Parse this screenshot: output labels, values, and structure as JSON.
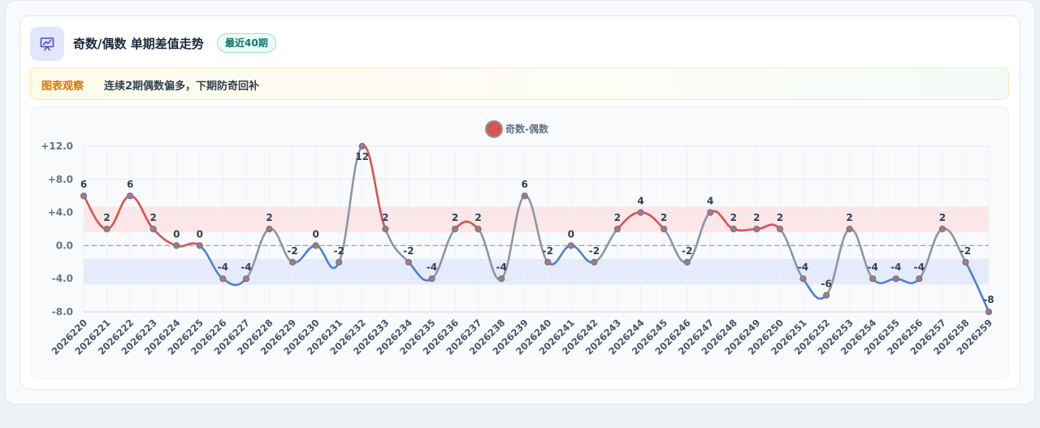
{
  "header": {
    "title": "奇数/偶数 单期差值走势",
    "badge": "最近40期"
  },
  "insight": {
    "label": "图表观察",
    "text": "连续2期偶数偏多，下期防奇回补"
  },
  "colors": {
    "positive": "#d9534f",
    "negative": "#4f7fd9",
    "neutral": "#8a97a6",
    "positive_band": "#fde3e6",
    "negative_band": "#e2e9fb",
    "accent": "#4f46e5"
  },
  "chart_data": {
    "type": "line",
    "title": "",
    "xlabel": "",
    "ylabel": "",
    "ylim": [
      -8,
      12
    ],
    "yticks": [
      {
        "value": 12,
        "label": "+12.0"
      },
      {
        "value": 8,
        "label": "+8.0"
      },
      {
        "value": 4,
        "label": "+4.0"
      },
      {
        "value": 0,
        "label": "0.0"
      },
      {
        "value": -4,
        "label": "-4.0"
      },
      {
        "value": -8,
        "label": "-8.0"
      }
    ],
    "legend": {
      "position": "top-center"
    },
    "grid": true,
    "zero_line": "dashed",
    "bands": [
      {
        "from": 1.6,
        "to": 4.7,
        "tone": "positive"
      },
      {
        "from": -4.7,
        "to": -1.6,
        "tone": "negative"
      }
    ],
    "x": [
      "2026220",
      "2026221",
      "2026222",
      "2026223",
      "2026224",
      "2026225",
      "2026226",
      "2026227",
      "2026228",
      "2026229",
      "2026230",
      "2026231",
      "2026232",
      "2026233",
      "2026234",
      "2026235",
      "2026236",
      "2026237",
      "2026238",
      "2026239",
      "2026240",
      "2026241",
      "2026242",
      "2026243",
      "2026244",
      "2026245",
      "2026246",
      "2026247",
      "2026248",
      "2026249",
      "2026250",
      "2026251",
      "2026252",
      "2026253",
      "2026254",
      "2026255",
      "2026256",
      "2026257",
      "2026258",
      "2026259"
    ],
    "series": [
      {
        "name": "奇数-偶数",
        "values": [
          6,
          2,
          6,
          2,
          0,
          0,
          -4,
          -4,
          2,
          -2,
          0,
          -2,
          12,
          2,
          -2,
          -4,
          2,
          2,
          -4,
          6,
          -2,
          0,
          -2,
          2,
          4,
          2,
          -2,
          4,
          2,
          2,
          2,
          -4,
          -6,
          2,
          -4,
          -4,
          -4,
          2,
          -2,
          -8
        ],
        "labels": [
          "6",
          "2",
          "6",
          "2",
          "0",
          "0",
          "-4",
          "-4",
          "2",
          "-2",
          "0",
          "-2",
          "12",
          "2",
          "-2",
          "-4",
          "2",
          "2",
          "-4",
          "6",
          "-2",
          "0",
          "-2",
          "2",
          "4",
          "2",
          "-2",
          "4",
          "2",
          "2",
          "2",
          "-4",
          "-6",
          "2",
          "-4",
          "-4",
          "-4",
          "2",
          "-2",
          "-8"
        ]
      }
    ]
  }
}
